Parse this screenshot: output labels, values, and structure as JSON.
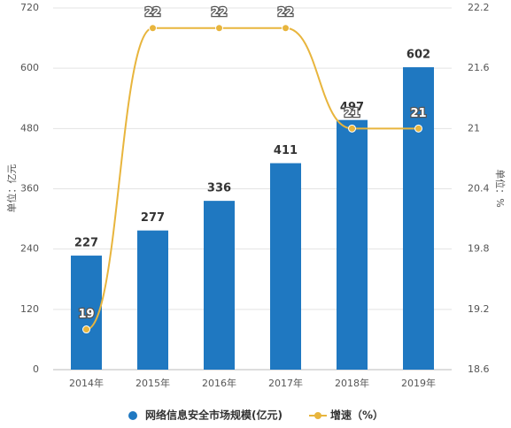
{
  "chart_data": {
    "type": "bar-line",
    "categories": [
      "2014年",
      "2015年",
      "2016年",
      "2017年",
      "2018年",
      "2019年"
    ],
    "series": [
      {
        "name": "网络信息安全市场规模(亿元)",
        "color": "#1f78c1",
        "values": [
          227,
          277,
          336,
          411,
          497,
          602
        ]
      },
      {
        "name": "增速（%）",
        "color": "#e8b53d",
        "axis": "y2",
        "values": [
          19,
          22,
          22,
          22,
          21,
          21
        ]
      }
    ],
    "y_label": "单位：亿元",
    "y2_label": "单位：%",
    "ylim": [
      0,
      720
    ],
    "yticks": [
      0,
      120,
      240,
      360,
      480,
      600,
      720
    ],
    "y2lim": [
      18.6,
      22.2
    ],
    "y2ticks": [
      18.6,
      19.2,
      19.8,
      20.4,
      21,
      21.6,
      22.2
    ],
    "grid": true,
    "legend": "bottom"
  }
}
